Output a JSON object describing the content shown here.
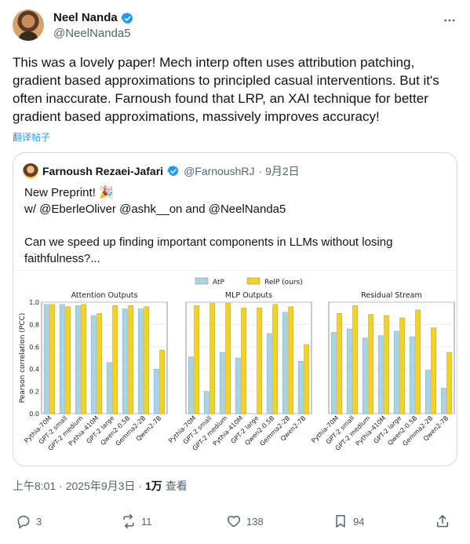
{
  "author": {
    "display_name": "Neel Nanda",
    "handle": "@NeelNanda5"
  },
  "tweet": {
    "text": "This was a lovely paper! Mech interp often uses attribution patching, gradient based approximations to principled casual interventions. But it's often inaccurate. Farnoush found that LRP, an XAI technique for better gradient based approximations, massively improves accuracy!",
    "translate_label": "翻译帖子"
  },
  "quote": {
    "display_name": "Farnoush Rezaei-Jafari",
    "handle": "@FarnoushRJ",
    "date": "· 9月2日",
    "text": "New Preprint! 🎉\nw/ @EberleOliver @ashk__on  and @NeelNanda5\n\nCan we speed up finding important components in LLMs without losing faithfulness?..."
  },
  "meta": {
    "time": "上午8:01 · 2025年9月3日 ·",
    "views_count": "1万",
    "views_label": "查看"
  },
  "actions": {
    "replies": "3",
    "reposts": "11",
    "likes": "138",
    "bookmarks": "94"
  },
  "colors": {
    "atp": "#a9d5e3",
    "relp": "#f5d21f",
    "accent": "#1d9bf0"
  },
  "chart_data": [
    {
      "type": "bar",
      "title": "Attention Outputs",
      "ylabel": "Pearson correlation (PCC)",
      "ylim": [
        0.0,
        1.0
      ],
      "yticks": [
        "0.0",
        "0.2",
        "0.4",
        "0.6",
        "0.8",
        "1.0"
      ],
      "legend": {
        "placement": "top-center",
        "entries": [
          "AtP",
          "RelP (ours)"
        ]
      },
      "categories": [
        "Pythia-70M",
        "GPT-2 small",
        "GPT-2 medium",
        "Pythia-410M",
        "GPT-2 large",
        "Qwen2-0.5B",
        "Gemma2-2B",
        "Qwen2-7B"
      ],
      "series": [
        {
          "name": "AtP",
          "values": [
            0.98,
            0.98,
            0.97,
            0.88,
            0.46,
            0.94,
            0.94,
            0.4
          ]
        },
        {
          "name": "RelP (ours)",
          "values": [
            0.98,
            0.96,
            0.98,
            0.9,
            0.97,
            0.97,
            0.96,
            0.57
          ]
        }
      ]
    },
    {
      "type": "bar",
      "title": "MLP Outputs",
      "ylim": [
        0.0,
        1.0
      ],
      "categories": [
        "Pythia-70M",
        "GPT-2 small",
        "GPT-2 medium",
        "Pythia-410M",
        "GPT-2 large",
        "Qwen2-0.5B",
        "Gemma2-2B",
        "Qwen2-7B"
      ],
      "series": [
        {
          "name": "AtP",
          "values": [
            0.51,
            0.2,
            0.55,
            0.5,
            0.0,
            0.72,
            0.91,
            0.47
          ]
        },
        {
          "name": "RelP (ours)",
          "values": [
            0.97,
            0.99,
            0.99,
            0.95,
            0.95,
            0.98,
            0.96,
            0.62
          ]
        }
      ]
    },
    {
      "type": "bar",
      "title": "Residual Stream",
      "ylim": [
        0.0,
        1.0
      ],
      "categories": [
        "Pythia-70M",
        "GPT-2 small",
        "GPT-2 medium",
        "Pythia-410M",
        "GPT-2 large",
        "Qwen2-0.5B",
        "Gemma2-2B",
        "Qwen2-7B"
      ],
      "series": [
        {
          "name": "AtP",
          "values": [
            0.73,
            0.76,
            0.68,
            0.7,
            0.74,
            0.69,
            0.39,
            0.23
          ]
        },
        {
          "name": "RelP (ours)",
          "values": [
            0.9,
            0.97,
            0.89,
            0.88,
            0.86,
            0.93,
            0.77,
            0.55
          ]
        }
      ]
    }
  ]
}
